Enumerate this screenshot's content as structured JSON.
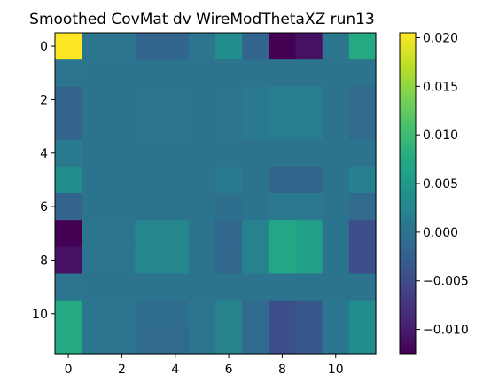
{
  "chart_data": {
    "type": "heatmap",
    "title": "Smoothed CovMat dv WireModThetaXZ run13",
    "xlabel": "",
    "ylabel": "",
    "colormap": "viridis",
    "vmin": -0.0125,
    "vmax": 0.0205,
    "x_ticks": [
      "0",
      "2",
      "4",
      "6",
      "8",
      "10"
    ],
    "y_ticks": [
      "0",
      "2",
      "4",
      "6",
      "8",
      "10"
    ],
    "colorbar_ticks": [
      "0.020",
      "0.015",
      "0.010",
      "0.005",
      "0.000",
      "−0.005",
      "−0.010"
    ],
    "colorbar_tick_values": [
      0.02,
      0.015,
      0.01,
      0.005,
      0.0,
      -0.005,
      -0.01
    ],
    "matrix": [
      [
        0.0205,
        0.0005,
        0.0005,
        -0.0018,
        -0.0018,
        0.0005,
        0.0035,
        -0.0018,
        -0.0125,
        -0.011,
        0.0005,
        0.0075
      ],
      [
        0.0005,
        0.0,
        0.0,
        0.0,
        0.0,
        0.0,
        0.0,
        0.0,
        0.0,
        0.0,
        0.0,
        0.0
      ],
      [
        -0.002,
        0.0,
        0.0,
        0.0005,
        0.0005,
        0.0,
        0.0005,
        0.0008,
        0.0015,
        0.0015,
        0.0,
        -0.001
      ],
      [
        -0.002,
        0.0,
        0.0,
        0.0005,
        0.0005,
        0.0,
        0.0005,
        0.0008,
        0.0015,
        0.0015,
        0.0,
        -0.001
      ],
      [
        0.001,
        0.0,
        0.0,
        0.0,
        0.0,
        0.0,
        0.0,
        0.0,
        0.0,
        0.0,
        0.0,
        0.0
      ],
      [
        0.0035,
        0.0,
        0.0,
        0.0,
        0.0,
        0.0,
        0.001,
        0.0,
        -0.0018,
        -0.0018,
        0.0,
        0.0018
      ],
      [
        -0.002,
        0.0,
        0.0,
        0.0,
        0.0,
        0.0,
        -0.0005,
        0.0,
        0.0008,
        0.0008,
        0.0,
        -0.001
      ],
      [
        -0.0125,
        0.0005,
        0.0005,
        0.0025,
        0.0025,
        0.0,
        -0.0015,
        0.002,
        0.007,
        0.006,
        0.0,
        -0.0045
      ],
      [
        -0.011,
        0.0005,
        0.0005,
        0.0025,
        0.0025,
        0.0,
        -0.0015,
        0.002,
        0.007,
        0.006,
        0.0,
        -0.0045
      ],
      [
        0.0005,
        0.0,
        0.0,
        0.0,
        0.0,
        0.0,
        0.0,
        0.0,
        0.0,
        0.0,
        0.0,
        0.0
      ],
      [
        0.0075,
        0.0005,
        0.0005,
        -0.0008,
        -0.0008,
        0.0005,
        0.002,
        -0.001,
        -0.0045,
        -0.0035,
        0.0005,
        0.0035
      ]
    ],
    "matrix_row12_note": "",
    "row_11": [
      0.0075,
      0.0005,
      0.0005,
      -0.001,
      -0.001,
      0.0005,
      0.002,
      -0.001,
      -0.0045,
      -0.0035,
      0.0005,
      0.0035
    ]
  }
}
